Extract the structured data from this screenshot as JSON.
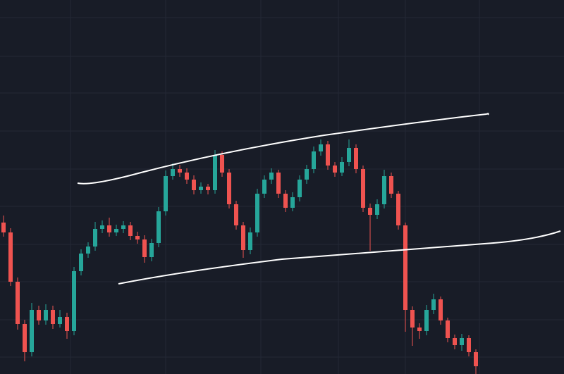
{
  "chart_data": {
    "type": "candlestick",
    "open": [
      215,
      201,
      131,
      71,
      31,
      91,
      76,
      91,
      71,
      81,
      61,
      146,
      171,
      181,
      206,
      211,
      201,
      206,
      211,
      196,
      191,
      166,
      186,
      231,
      281,
      291,
      286,
      276,
      261,
      266,
      261,
      311,
      286,
      241,
      211,
      176,
      201,
      256,
      276,
      286,
      256,
      236,
      251,
      276,
      291,
      316,
      326,
      296,
      286,
      301,
      321,
      291,
      236,
      226,
      241,
      281,
      256,
      211,
      91,
      66,
      61,
      91,
      106,
      76,
      51,
      41,
      51,
      31
    ],
    "high": [
      225,
      207,
      137,
      77,
      101,
      97,
      99,
      97,
      91,
      87,
      152,
      177,
      187,
      216,
      218,
      222,
      212,
      217,
      216,
      202,
      197,
      192,
      237,
      289,
      299,
      297,
      292,
      282,
      272,
      270,
      318,
      316,
      291,
      246,
      216,
      208,
      263,
      282,
      292,
      290,
      261,
      258,
      282,
      297,
      323,
      333,
      331,
      301,
      308,
      333,
      326,
      296,
      242,
      248,
      290,
      286,
      260,
      215,
      96,
      72,
      98,
      114,
      110,
      80,
      56,
      57,
      55,
      35
    ],
    "low": [
      195,
      125,
      63,
      18,
      25,
      70,
      70,
      64,
      66,
      50,
      55,
      140,
      165,
      175,
      200,
      195,
      196,
      200,
      190,
      185,
      158,
      160,
      180,
      225,
      276,
      280,
      270,
      255,
      256,
      255,
      256,
      280,
      235,
      205,
      165,
      170,
      195,
      250,
      270,
      250,
      230,
      231,
      245,
      270,
      285,
      310,
      290,
      280,
      281,
      295,
      285,
      230,
      175,
      220,
      235,
      250,
      205,
      60,
      40,
      50,
      55,
      85,
      70,
      45,
      35,
      33,
      25,
      0
    ],
    "close": [
      201,
      131,
      71,
      31,
      91,
      76,
      91,
      71,
      81,
      61,
      146,
      171,
      181,
      206,
      211,
      201,
      206,
      211,
      196,
      191,
      166,
      186,
      231,
      281,
      291,
      286,
      276,
      261,
      266,
      261,
      311,
      286,
      241,
      211,
      176,
      201,
      256,
      276,
      286,
      256,
      236,
      251,
      276,
      291,
      316,
      326,
      296,
      286,
      301,
      321,
      291,
      236,
      226,
      241,
      281,
      256,
      211,
      91,
      66,
      61,
      91,
      106,
      76,
      51,
      41,
      51,
      31,
      11
    ],
    "up_color": "#26a69a",
    "down_color": "#ef5350",
    "ylim": [
      0,
      531
    ],
    "yticks": [
      24,
      77,
      131,
      184,
      238,
      291,
      345,
      399,
      451,
      506
    ],
    "grid": true
  }
}
